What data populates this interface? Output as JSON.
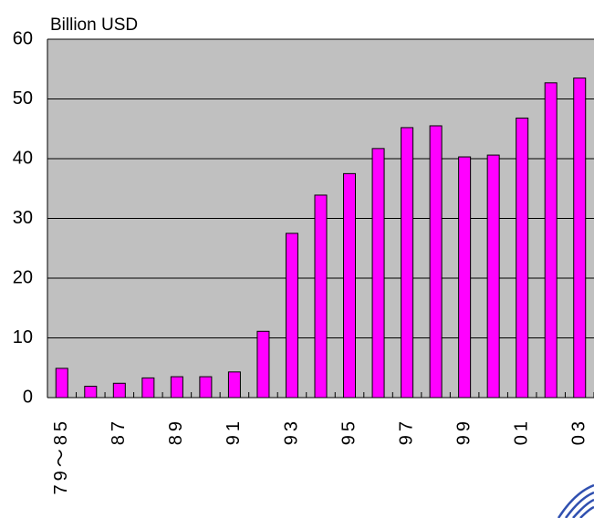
{
  "chart_data": {
    "type": "bar",
    "y_label": "Billion USD",
    "categories": [
      "79～85",
      null,
      "87",
      null,
      "89",
      null,
      "91",
      null,
      "93",
      null,
      "95",
      null,
      "97",
      null,
      "99",
      null,
      "01",
      null,
      "03"
    ],
    "values": [
      4.9,
      1.9,
      2.4,
      3.3,
      3.5,
      3.5,
      4.3,
      11.1,
      27.5,
      33.9,
      37.5,
      41.7,
      45.2,
      45.5,
      40.3,
      40.6,
      46.8,
      52.7,
      53.5
    ],
    "color": "#ff00ff",
    "ylim": [
      0,
      60
    ],
    "yticks": [
      0,
      10,
      20,
      30,
      40,
      50,
      60
    ],
    "grid": true
  }
}
